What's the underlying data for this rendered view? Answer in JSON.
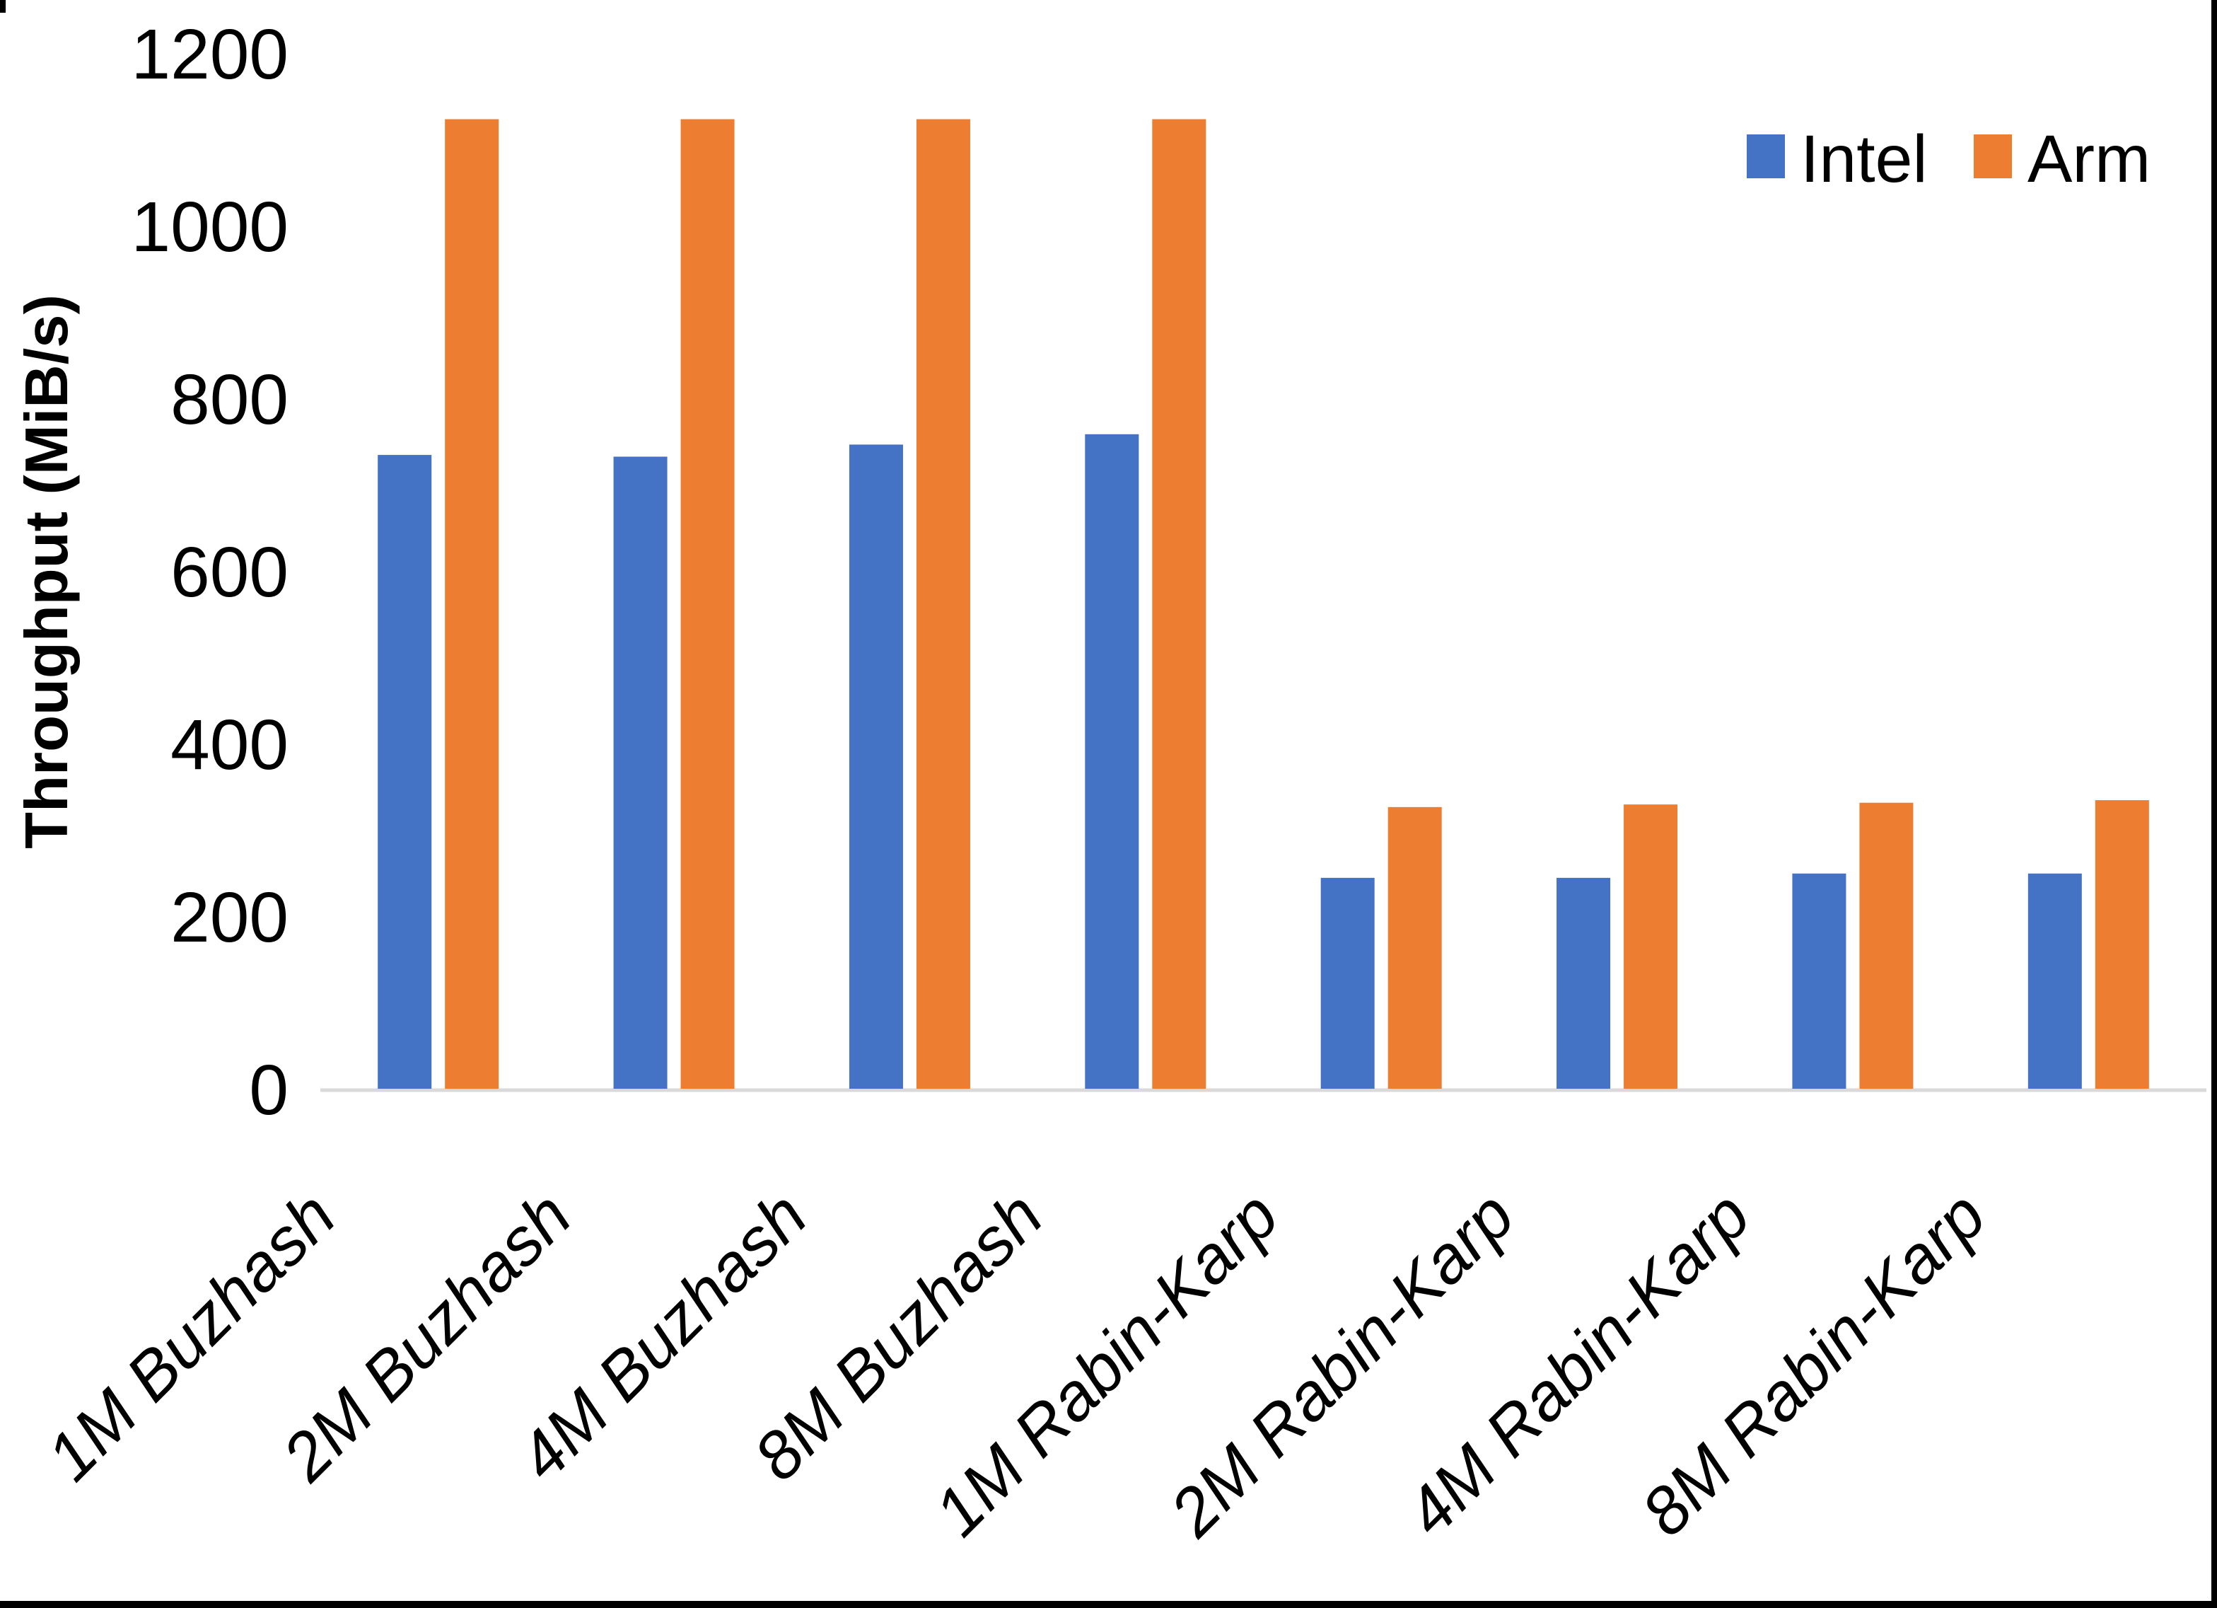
{
  "figure": {
    "background_color": "#ffffff",
    "frame_border_color": "#000000"
  },
  "chart_data": {
    "type": "bar",
    "title": "",
    "xlabel": "",
    "ylabel": "Throughput (MiB/s)",
    "ylim": [
      0,
      1200
    ],
    "yticks": [
      0,
      200,
      400,
      600,
      800,
      1000,
      1200
    ],
    "grid": false,
    "legend_position": "top-right",
    "category_label_style": "italic, rotated 45 degrees",
    "axis_line_color": "#D9D9D9",
    "text_color": "#000000",
    "categories": [
      "1M Buzhash",
      "2M Buzhash",
      "4M Buzhash",
      "8M Buzhash",
      "1M Rabin-Karp",
      "2M Rabin-Karp",
      "4M Rabin-Karp",
      "8M Rabin-Karp"
    ],
    "series": [
      {
        "name": "Intel",
        "color": "#4472C4",
        "values": [
          736,
          734,
          748,
          760,
          246,
          246,
          251,
          251
        ]
      },
      {
        "name": "Arm",
        "color": "#ED7D31",
        "values": [
          1125,
          1125,
          1125,
          1125,
          328,
          331,
          333,
          336
        ]
      }
    ]
  }
}
